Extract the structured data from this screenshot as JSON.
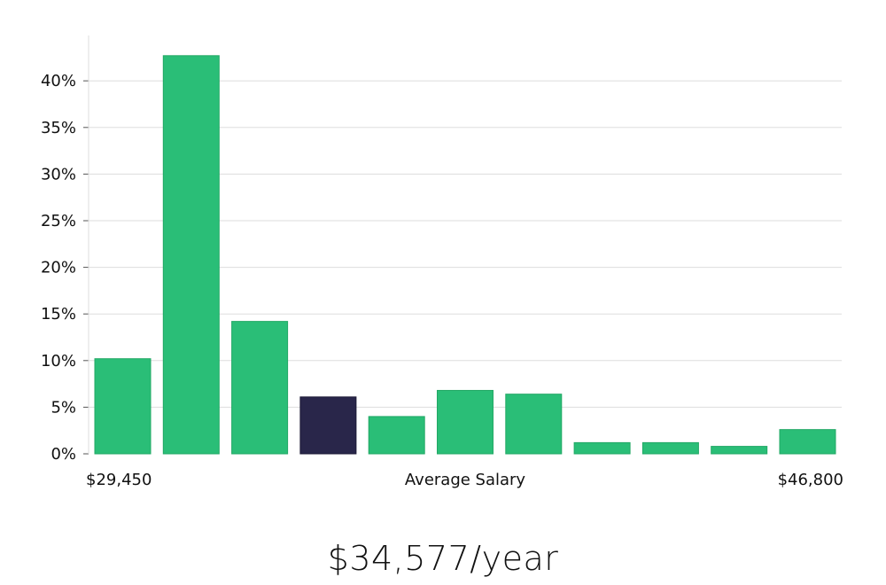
{
  "chart_data": {
    "type": "bar",
    "title": "",
    "xlabel": "Average Salary",
    "ylabel": "",
    "x_min_label": "$29,450",
    "x_max_label": "$46,800",
    "ylim": [
      0,
      45
    ],
    "y_ticks": [
      0,
      5,
      10,
      15,
      20,
      25,
      30,
      35,
      40
    ],
    "y_tick_labels": [
      "0%",
      "5%",
      "10%",
      "15%",
      "20%",
      "25%",
      "30%",
      "35%",
      "40%"
    ],
    "values": [
      10.2,
      42.7,
      14.2,
      6.1,
      4.0,
      6.8,
      6.4,
      1.2,
      1.2,
      0.8,
      2.6
    ],
    "highlight_index": 3,
    "grid": true,
    "colors": {
      "bar": "#2abe77",
      "bar_stroke": "#22a865",
      "highlight": "#29264a",
      "grid": "#dddddd"
    }
  },
  "summary": {
    "average_salary": "$34,577/year"
  }
}
